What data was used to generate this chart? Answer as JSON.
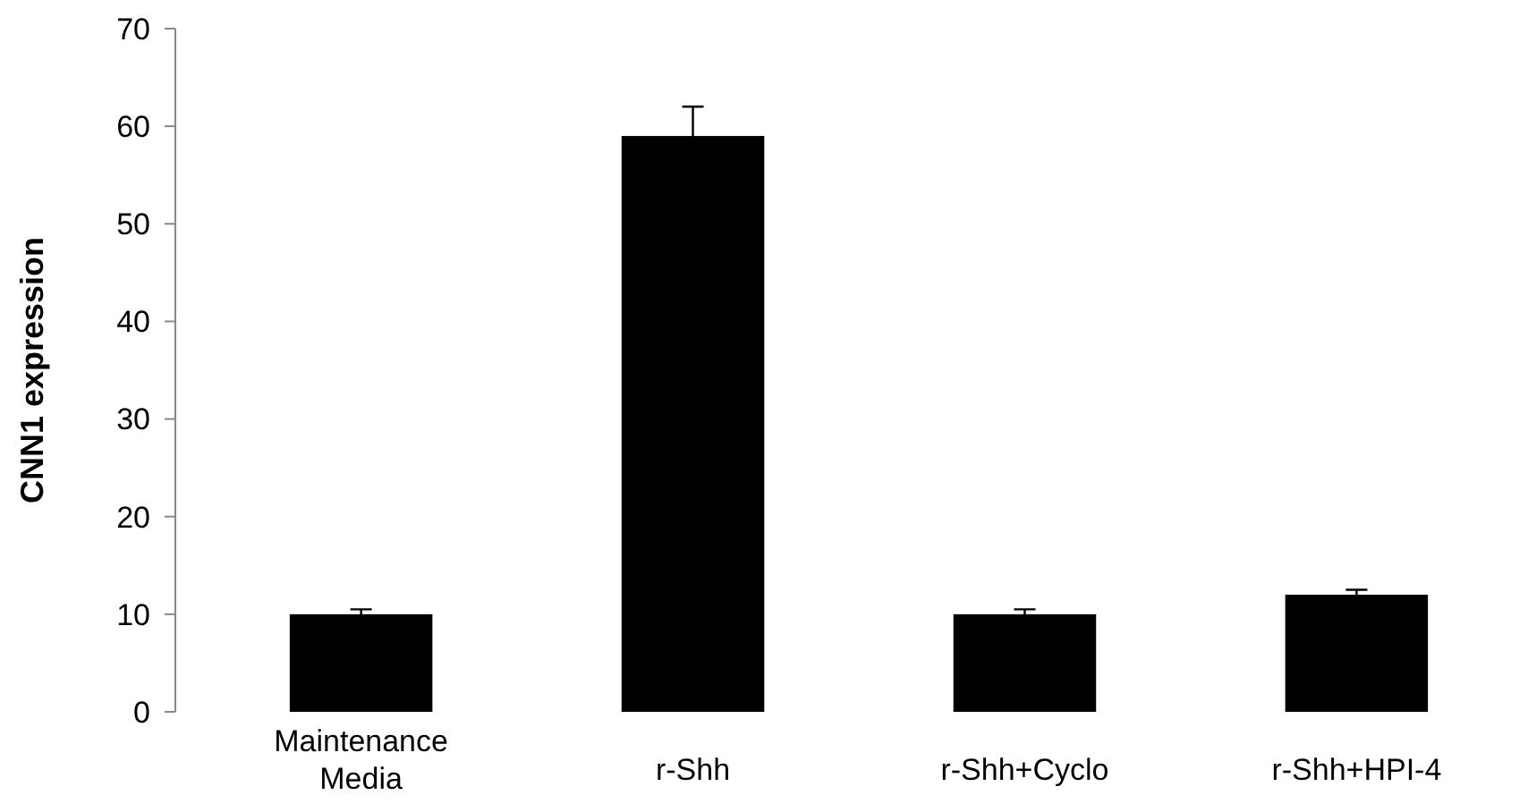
{
  "chart_data": {
    "type": "bar",
    "ylabel": "CNN1 expression",
    "categories": [
      "Maintenance Media",
      "r-Shh",
      "r-Shh+Cyclo",
      "r-Shh+HPI-4"
    ],
    "values": [
      10,
      59,
      10,
      12
    ],
    "errors": [
      0.5,
      3,
      0.5,
      0.5
    ],
    "color": "#000000",
    "ylim": [
      0,
      70
    ],
    "yticks": [
      0,
      10,
      20,
      30,
      40,
      50,
      60,
      70
    ],
    "grid": false
  }
}
